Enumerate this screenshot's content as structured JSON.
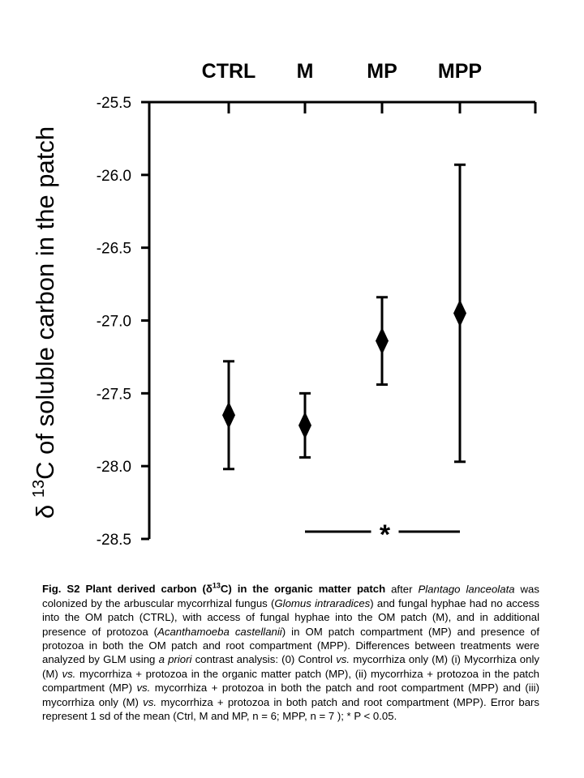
{
  "chart_data": {
    "type": "scatter",
    "title": "",
    "ylabel_prefix": "δ ",
    "ylabel_sup": "13",
    "ylabel_main": "C of soluble carbon in the patch",
    "xlabel": "",
    "categories": [
      "CTRL",
      "M",
      "MP",
      "MPP"
    ],
    "series": [
      {
        "values": [
          -27.65,
          -27.72,
          -27.14,
          -26.95
        ],
        "error": [
          0.37,
          0.22,
          0.3,
          1.02
        ]
      }
    ],
    "ylim": [
      -28.5,
      -25.5
    ],
    "yticks": [
      "-25.5",
      "-26.0",
      "-26.5",
      "-27.0",
      "-27.5",
      "-28.0",
      "-28.5"
    ],
    "ytick_values": [
      -25.5,
      -26.0,
      -26.5,
      -27.0,
      -27.5,
      -28.0,
      -28.5
    ],
    "y_inverted_axis_at_top": true,
    "grid": false,
    "marker": "diamond",
    "significance": {
      "label": "*",
      "from_category": "M",
      "to_category": "MPP",
      "at_y": -28.45
    }
  },
  "caption": {
    "bold_lead": "Fig. S2 Plant derived carbon (δ",
    "bold_sup": "13",
    "bold_tail": "C) in the organic matter patch",
    "t1": " after ",
    "i1": "Plantago lanceolata",
    "t2": " was colonized by the arbuscular mycorrhizal fungus (",
    "i2": "Glomus intraradices",
    "t3": ") and fungal hyphae had no access into the OM patch (CTRL), with access of fungal hyphae into the OM patch (M), and in additional presence of protozoa (",
    "i3": "Acanthamoeba castellanii",
    "t4": ") in OM patch compartment (MP) and presence of protozoa in both the OM patch and root compartment (MPP). Differences between treatments were analyzed by GLM using ",
    "i4": "a priori",
    "t5": " contrast analysis: (0) Control ",
    "i5": "vs.",
    "t6": " mycorrhiza only (M) (i) Mycorrhiza only (M) ",
    "i6": "vs.",
    "t7": " mycorrhiza + protozoa in the organic matter patch (MP), (ii) mycorrhiza + protozoa in the patch compartment (MP) ",
    "i7": "vs.",
    "t8": " mycorrhiza + protozoa in both the patch and root compartment (MPP) and (iii) mycorrhiza only (M) ",
    "i8": "vs.",
    "t9": " mycorrhiza + protozoa in both patch and root compartment (MPP). Error bars represent 1 sd of the mean  (Ctrl, M and MP, n = 6; MPP, n = 7 ); * P < 0.05."
  }
}
